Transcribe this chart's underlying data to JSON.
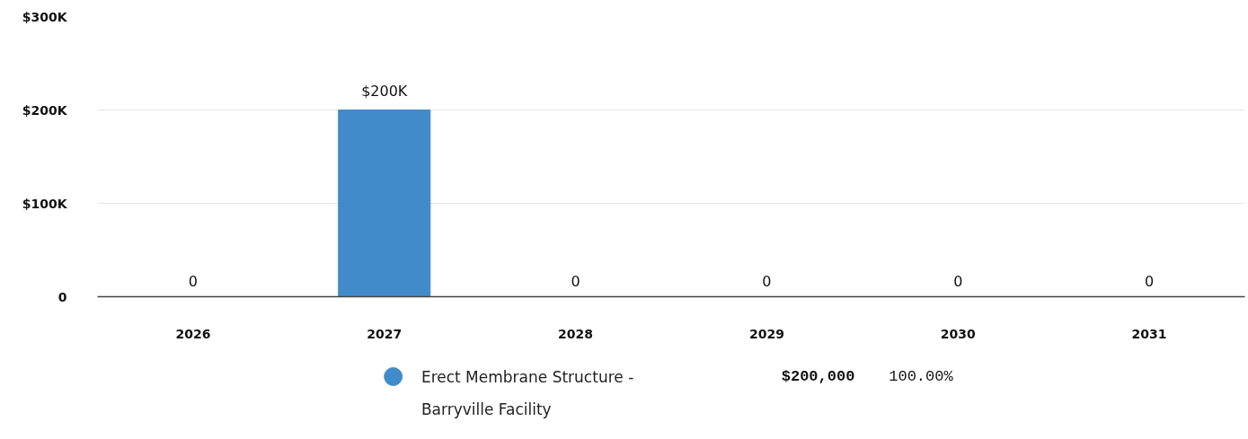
{
  "chart_data": {
    "type": "bar",
    "categories": [
      "2026",
      "2027",
      "2028",
      "2029",
      "2030",
      "2031"
    ],
    "series": [
      {
        "name": "Erect Membrane Structure - Barryville Facility",
        "color": "#428bca",
        "values": [
          0,
          200000,
          0,
          0,
          0,
          0
        ],
        "value_labels": [
          "0",
          "$200K",
          "0",
          "0",
          "0",
          "0"
        ]
      }
    ],
    "ylim": [
      0,
      300000
    ],
    "yticks": [
      {
        "value": 0,
        "label": "0"
      },
      {
        "value": 100000,
        "label": "$100K"
      },
      {
        "value": 200000,
        "label": "$200K"
      },
      {
        "value": 300000,
        "label": "$300K"
      }
    ],
    "grid": "y",
    "legend": "bottom",
    "annotations": [
      "$200,000",
      "100.00%"
    ]
  }
}
